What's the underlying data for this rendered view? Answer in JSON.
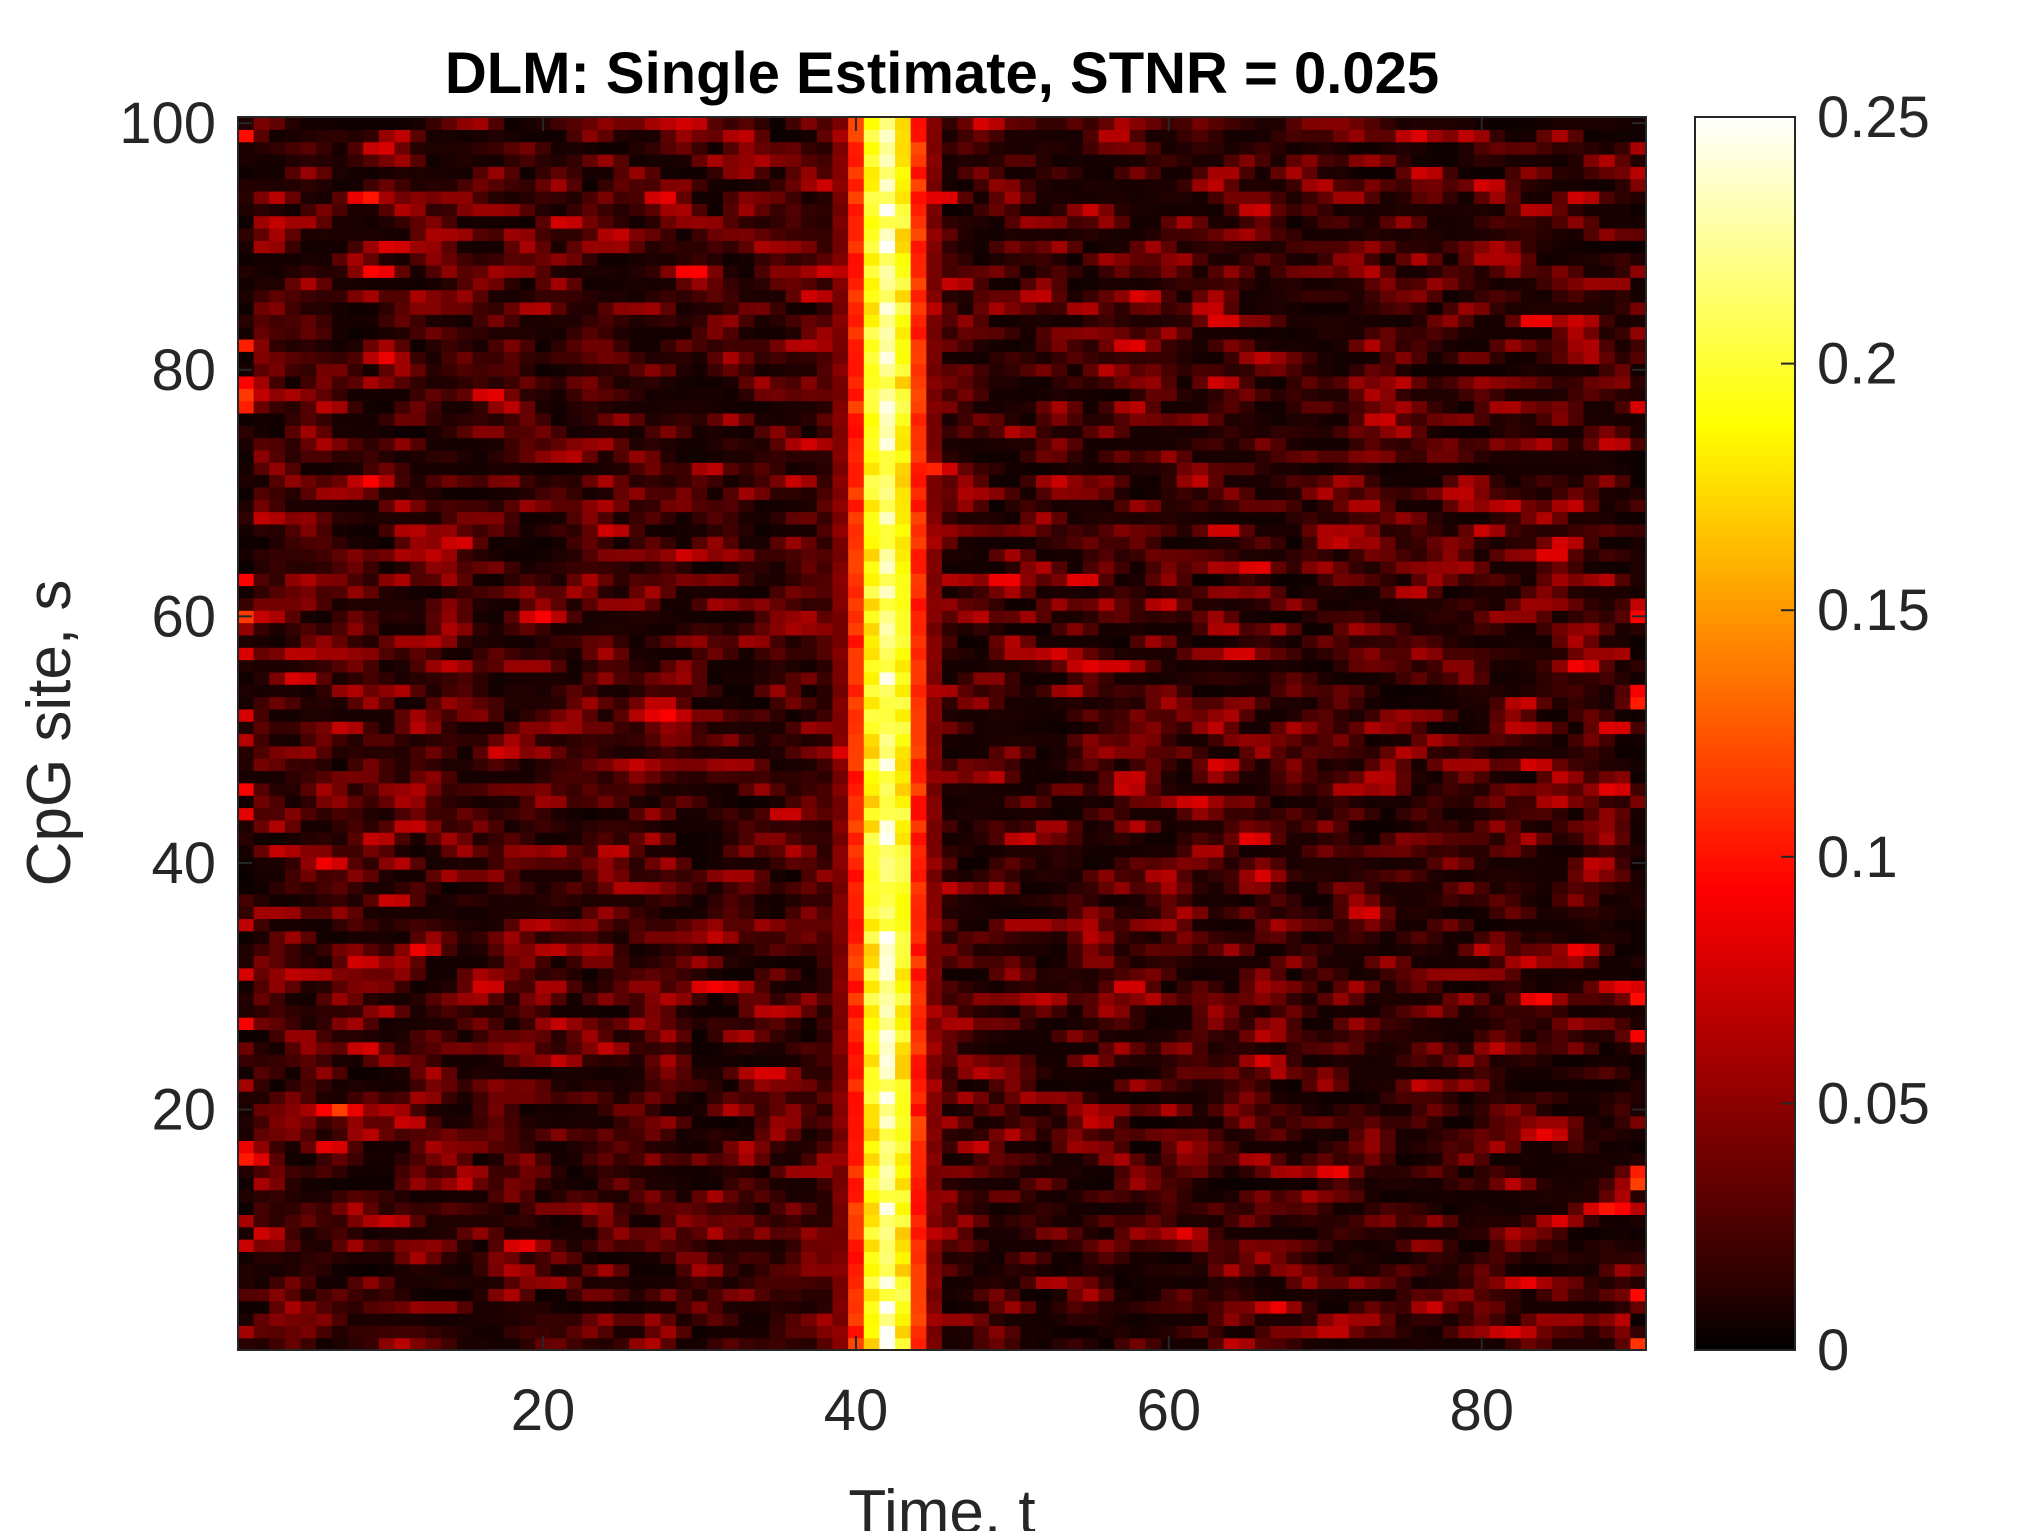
{
  "chart_data": {
    "type": "heatmap",
    "title": "DLM: Single Estimate, STNR = 0.025",
    "xlabel": "Time, t",
    "ylabel": "CpG site, s",
    "xlim": [
      0.5,
      90.5
    ],
    "ylim": [
      0.5,
      100.5
    ],
    "x_range": [
      1,
      90
    ],
    "y_range": [
      1,
      100
    ],
    "x_ticks": [
      20,
      40,
      60,
      80
    ],
    "y_ticks": [
      20,
      40,
      60,
      80,
      100
    ],
    "colormap": "hot",
    "color_limits": [
      0,
      0.25
    ],
    "colorbar_ticks": [
      0,
      0.05,
      0.1,
      0.15,
      0.2,
      0.25
    ],
    "colorbar_tick_labels": [
      "0",
      "0.05",
      "0.1",
      "0.15",
      "0.2",
      "0.25"
    ],
    "colorbar_location": "right",
    "grid": false,
    "structure": {
      "signal_band_t": [
        38,
        45
      ],
      "signal_peak_t": 42,
      "signal_peak_value": 0.25,
      "background_noise_max": 0.12
    }
  }
}
